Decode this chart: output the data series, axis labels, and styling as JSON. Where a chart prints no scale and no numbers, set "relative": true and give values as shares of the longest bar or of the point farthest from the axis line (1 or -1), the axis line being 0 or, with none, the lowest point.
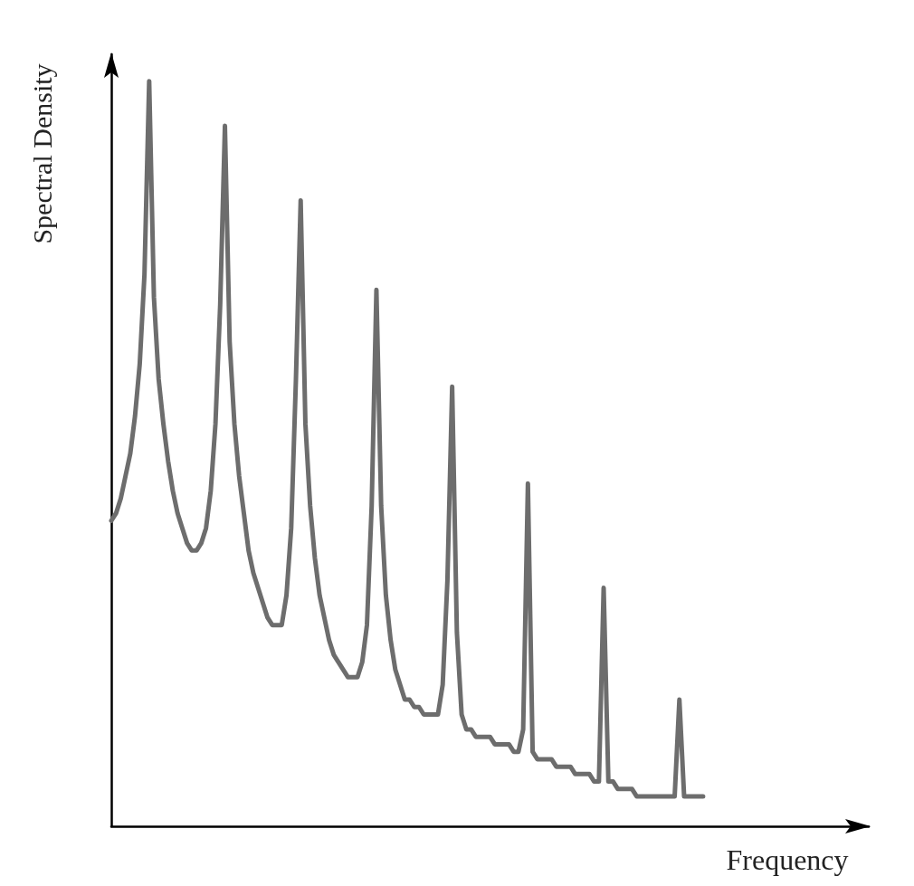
{
  "chart_data": {
    "type": "line",
    "relative": true,
    "xlabel": "Frequency",
    "ylabel": "Spectral Density",
    "grid": false,
    "line_style": "solid",
    "categories": [
      null,
      null,
      null,
      null,
      null,
      null,
      null,
      null,
      null,
      null,
      null,
      null,
      null,
      null,
      null,
      null,
      null,
      null,
      null,
      null,
      null,
      null,
      null,
      null,
      null,
      null,
      null,
      null,
      null,
      null,
      null,
      null,
      null,
      null,
      null,
      null,
      null,
      null,
      null,
      null,
      null,
      null,
      null,
      null,
      null,
      null,
      null,
      null,
      null,
      null,
      null,
      null,
      null,
      null,
      null,
      null,
      null,
      null,
      null,
      null,
      null,
      null,
      null,
      null,
      null,
      null,
      null,
      null,
      null,
      null,
      null,
      null,
      null,
      null,
      null,
      null,
      null,
      null,
      null,
      null,
      null,
      null,
      null,
      null,
      null,
      null,
      null,
      null,
      null,
      null,
      null,
      null,
      null,
      null,
      null,
      null,
      null,
      null,
      null,
      null,
      null,
      null,
      null,
      null,
      null,
      null,
      null,
      null,
      null,
      null,
      null,
      null,
      null,
      null,
      null,
      null,
      null,
      null,
      null,
      null,
      null,
      null,
      null,
      null,
      null,
      null
    ],
    "series": [
      {
        "color": "#6d6d6d",
        "values": [
          0.41,
          0.42,
          0.44,
          0.47,
          0.5,
          0.55,
          0.62,
          0.74,
          1,
          0.71,
          0.6,
          0.54,
          0.49,
          0.45,
          0.42,
          0.4,
          0.38,
          0.37,
          0.37,
          0.38,
          0.4,
          0.45,
          0.54,
          0.7,
          0.94,
          0.65,
          0.54,
          0.47,
          0.42,
          0.37,
          0.34,
          0.32,
          0.3,
          0.28,
          0.27,
          0.27,
          0.27,
          0.31,
          0.4,
          0.6,
          0.84,
          0.54,
          0.43,
          0.36,
          0.31,
          0.28,
          0.25,
          0.23,
          0.22,
          0.21,
          0.2,
          0.2,
          0.2,
          0.22,
          0.27,
          0.43,
          0.72,
          0.43,
          0.31,
          0.25,
          0.21,
          0.19,
          0.17,
          0.17,
          0.16,
          0.16,
          0.15,
          0.15,
          0.15,
          0.15,
          0.19,
          0.33,
          0.59,
          0.26,
          0.15,
          0.13,
          0.13,
          0.12,
          0.12,
          0.12,
          0.12,
          0.11,
          0.11,
          0.11,
          0.11,
          0.1,
          0.1,
          0.13,
          0.46,
          0.1,
          0.09,
          0.09,
          0.09,
          0.09,
          0.08,
          0.08,
          0.08,
          0.08,
          0.07,
          0.07,
          0.07,
          0.07,
          0.06,
          0.06,
          0.32,
          0.06,
          0.06,
          0.05,
          0.05,
          0.05,
          0.05,
          0.04,
          0.04,
          0.04,
          0.04,
          0.04,
          0.04,
          0.04,
          0.04,
          0.04,
          0.17,
          0.04,
          0.04,
          0.04,
          0.04,
          0.04
        ]
      }
    ]
  }
}
